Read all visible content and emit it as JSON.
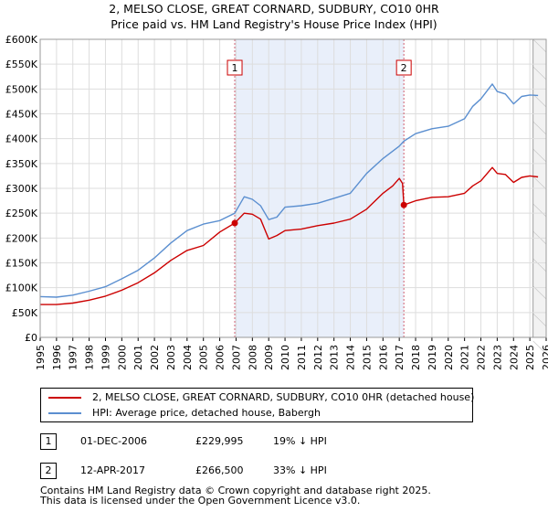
{
  "chart_data": {
    "type": "line",
    "title": "2, MELSO CLOSE, GREAT CORNARD, SUDBURY, CO10 0HR",
    "subtitle": "Price paid vs. HM Land Registry's House Price Index (HPI)",
    "xlim": [
      1995,
      2026
    ],
    "ylim": [
      0,
      600000
    ],
    "x_ticks": [
      1995,
      1996,
      1997,
      1998,
      1999,
      2000,
      2001,
      2002,
      2003,
      2004,
      2005,
      2006,
      2007,
      2008,
      2009,
      2010,
      2011,
      2012,
      2013,
      2014,
      2015,
      2016,
      2017,
      2018,
      2019,
      2020,
      2021,
      2022,
      2023,
      2024,
      2025,
      2026
    ],
    "y_ticks": [
      {
        "value": 0,
        "label": "£0"
      },
      {
        "value": 50000,
        "label": "£50K"
      },
      {
        "value": 100000,
        "label": "£100K"
      },
      {
        "value": 150000,
        "label": "£150K"
      },
      {
        "value": 200000,
        "label": "£200K"
      },
      {
        "value": 250000,
        "label": "£250K"
      },
      {
        "value": 300000,
        "label": "£300K"
      },
      {
        "value": 350000,
        "label": "£350K"
      },
      {
        "value": 400000,
        "label": "£400K"
      },
      {
        "value": 450000,
        "label": "£450K"
      },
      {
        "value": 500000,
        "label": "£500K"
      },
      {
        "value": 550000,
        "label": "£550K"
      },
      {
        "value": 600000,
        "label": "£600K"
      }
    ],
    "shaded_period": [
      2006.92,
      2017.28
    ],
    "forecast_start": 2025.2,
    "series": [
      {
        "name": "HPI: Average price, detached house, Babergh",
        "color": "#5b8fd0",
        "points": [
          [
            1995.0,
            82000
          ],
          [
            1996.0,
            81000
          ],
          [
            1997.0,
            85000
          ],
          [
            1998.0,
            93000
          ],
          [
            1999.0,
            102000
          ],
          [
            2000.0,
            118000
          ],
          [
            2001.0,
            135000
          ],
          [
            2002.0,
            160000
          ],
          [
            2003.0,
            190000
          ],
          [
            2004.0,
            215000
          ],
          [
            2005.0,
            228000
          ],
          [
            2006.0,
            235000
          ],
          [
            2006.92,
            250000
          ],
          [
            2007.5,
            283000
          ],
          [
            2008.0,
            278000
          ],
          [
            2008.5,
            265000
          ],
          [
            2009.0,
            237000
          ],
          [
            2009.5,
            242000
          ],
          [
            2010.0,
            262000
          ],
          [
            2011.0,
            265000
          ],
          [
            2012.0,
            270000
          ],
          [
            2013.0,
            280000
          ],
          [
            2014.0,
            290000
          ],
          [
            2015.0,
            330000
          ],
          [
            2016.0,
            360000
          ],
          [
            2017.0,
            385000
          ],
          [
            2017.28,
            395000
          ],
          [
            2018.0,
            410000
          ],
          [
            2019.0,
            420000
          ],
          [
            2020.0,
            425000
          ],
          [
            2021.0,
            440000
          ],
          [
            2021.5,
            465000
          ],
          [
            2022.0,
            480000
          ],
          [
            2022.7,
            510000
          ],
          [
            2023.0,
            495000
          ],
          [
            2023.5,
            490000
          ],
          [
            2024.0,
            470000
          ],
          [
            2024.5,
            485000
          ],
          [
            2025.0,
            488000
          ],
          [
            2025.5,
            487000
          ]
        ]
      },
      {
        "name": "2, MELSO CLOSE, GREAT CORNARD, SUDBURY, CO10 0HR (detached house)",
        "color": "#cc0000",
        "points": [
          [
            1995.0,
            66000
          ],
          [
            1996.0,
            66000
          ],
          [
            1997.0,
            69000
          ],
          [
            1998.0,
            75000
          ],
          [
            1999.0,
            83000
          ],
          [
            2000.0,
            95000
          ],
          [
            2001.0,
            110000
          ],
          [
            2002.0,
            130000
          ],
          [
            2003.0,
            155000
          ],
          [
            2004.0,
            175000
          ],
          [
            2005.0,
            185000
          ],
          [
            2006.0,
            212000
          ],
          [
            2006.92,
            229995
          ],
          [
            2007.5,
            250000
          ],
          [
            2008.0,
            248000
          ],
          [
            2008.5,
            238000
          ],
          [
            2009.0,
            198000
          ],
          [
            2009.5,
            205000
          ],
          [
            2010.0,
            215000
          ],
          [
            2011.0,
            218000
          ],
          [
            2012.0,
            225000
          ],
          [
            2013.0,
            230000
          ],
          [
            2014.0,
            238000
          ],
          [
            2015.0,
            258000
          ],
          [
            2016.0,
            290000
          ],
          [
            2016.6,
            305000
          ],
          [
            2017.0,
            320000
          ],
          [
            2017.2,
            310000
          ],
          [
            2017.28,
            266500
          ],
          [
            2018.0,
            275000
          ],
          [
            2019.0,
            282000
          ],
          [
            2020.0,
            283000
          ],
          [
            2021.0,
            290000
          ],
          [
            2021.5,
            305000
          ],
          [
            2022.0,
            315000
          ],
          [
            2022.7,
            342000
          ],
          [
            2023.0,
            330000
          ],
          [
            2023.5,
            328000
          ],
          [
            2024.0,
            312000
          ],
          [
            2024.5,
            322000
          ],
          [
            2025.0,
            325000
          ],
          [
            2025.5,
            323000
          ]
        ]
      }
    ],
    "sales": [
      {
        "id": "1",
        "x": 2006.92,
        "value": 229995
      },
      {
        "id": "2",
        "x": 2017.28,
        "value": 266500
      }
    ]
  },
  "legend": {
    "property_label": "2, MELSO CLOSE, GREAT CORNARD, SUDBURY, CO10 0HR (detached house)",
    "hpi_label": "HPI: Average price, detached house, Babergh",
    "property_color": "#cc0000",
    "hpi_color": "#5b8fd0"
  },
  "sales_table": [
    {
      "id": "1",
      "date": "01-DEC-2006",
      "price": "£229,995",
      "hpi": "19% ↓ HPI"
    },
    {
      "id": "2",
      "date": "12-APR-2017",
      "price": "£266,500",
      "hpi": "33% ↓ HPI"
    }
  ],
  "footer": {
    "line1": "Contains HM Land Registry data © Crown copyright and database right 2025.",
    "line2": "This data is licensed under the Open Government Licence v3.0."
  }
}
